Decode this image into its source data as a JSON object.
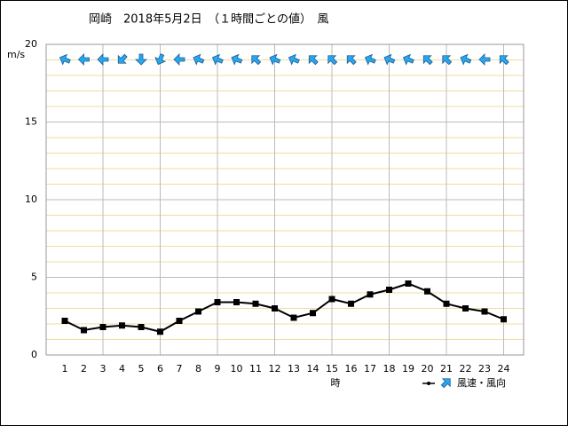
{
  "chart_data": {
    "type": "line",
    "title": "岡崎　2018年5月2日　（１時間ごとの値）　風",
    "y_label": "m/s",
    "x_label": "時",
    "categories": [
      "1",
      "2",
      "3",
      "4",
      "5",
      "6",
      "7",
      "8",
      "9",
      "10",
      "11",
      "12",
      "13",
      "14",
      "15",
      "16",
      "17",
      "18",
      "19",
      "20",
      "21",
      "22",
      "23",
      "24"
    ],
    "series": [
      {
        "name": "風速・風向",
        "color": "#000000",
        "arrow_color": "#2aa6ee",
        "values": [
          2.2,
          1.6,
          1.8,
          1.9,
          1.8,
          1.5,
          2.2,
          2.8,
          3.4,
          3.4,
          3.3,
          3.0,
          2.4,
          2.7,
          3.6,
          3.3,
          3.9,
          4.2,
          4.6,
          4.1,
          3.3,
          3.0,
          2.8,
          2.3
        ],
        "directions": [
          112.5,
          90,
          90,
          45,
          0,
          22.5,
          90,
          112.5,
          112.5,
          112.5,
          135,
          112.5,
          112.5,
          135,
          135,
          135,
          112.5,
          112.5,
          112.5,
          135,
          135,
          112.5,
          90,
          135
        ]
      }
    ],
    "ylim": [
      0,
      20
    ],
    "yticks": [
      0,
      5,
      10,
      15,
      20
    ],
    "grid": true
  }
}
